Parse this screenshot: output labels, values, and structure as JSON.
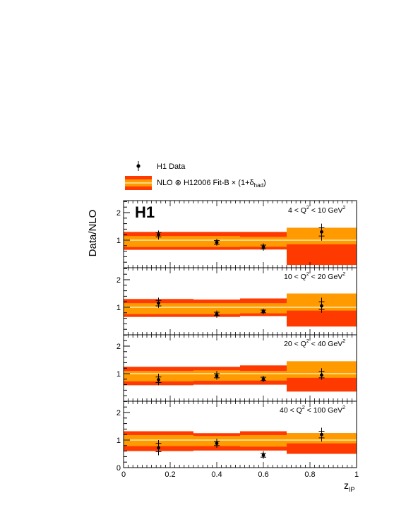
{
  "legend": {
    "data_label": "H1 Data",
    "theory_label": "NLO ⊗ H12006 Fit-B × (1+δhad)"
  },
  "experiment_logo": "H1",
  "y_axis_label": "Data/NLO",
  "x_axis_label": "zIP",
  "colors": {
    "outer_band": "#ff3a00",
    "inner_band": "#ff9a00",
    "central_line": "#ffe9a8",
    "data": "#000000"
  },
  "chart_data": {
    "type": "scatter",
    "x_range": [
      0,
      1
    ],
    "x_ticks": [
      "0",
      "0.2",
      "0.4",
      "0.6",
      "0.8",
      "1"
    ],
    "panels": [
      {
        "label": "4 < Q2 < 10 GeV2",
        "y_ticks_labeled": [
          "1",
          "2"
        ],
        "ylim": [
          0,
          2.4
        ],
        "bins": [
          {
            "x_low": 0.0,
            "x_high": 0.3,
            "outer": [
              0.65,
              1.3
            ],
            "inner": [
              0.75,
              1.15
            ]
          },
          {
            "x_low": 0.3,
            "x_high": 0.5,
            "outer": [
              0.65,
              1.3
            ],
            "inner": [
              0.75,
              1.15
            ]
          },
          {
            "x_low": 0.5,
            "x_high": 0.7,
            "outer": [
              0.66,
              1.3
            ],
            "inner": [
              0.76,
              1.12
            ]
          },
          {
            "x_low": 0.7,
            "x_high": 1.0,
            "outer": [
              0.1,
              1.45
            ],
            "inner": [
              0.85,
              1.45
            ]
          }
        ],
        "points": [
          {
            "x": 0.15,
            "y": 1.2,
            "stat": [
              1.12,
              1.28
            ],
            "tot": [
              1.02,
              1.35
            ]
          },
          {
            "x": 0.4,
            "y": 0.92,
            "stat": [
              0.85,
              0.99
            ],
            "tot": [
              0.8,
              1.05
            ]
          },
          {
            "x": 0.6,
            "y": 0.75,
            "stat": [
              0.68,
              0.82
            ],
            "tot": [
              0.62,
              0.88
            ]
          },
          {
            "x": 0.85,
            "y": 1.3,
            "stat": [
              1.15,
              1.45
            ],
            "tot": [
              0.98,
              1.6
            ]
          }
        ]
      },
      {
        "label": "10 < Q2 < 20 GeV2",
        "y_ticks_labeled": [
          "1",
          "2"
        ],
        "ylim": [
          0,
          2.4
        ],
        "bins": [
          {
            "x_low": 0.0,
            "x_high": 0.3,
            "outer": [
              0.65,
              1.3
            ],
            "inner": [
              0.75,
              1.15
            ]
          },
          {
            "x_low": 0.3,
            "x_high": 0.5,
            "outer": [
              0.65,
              1.28
            ],
            "inner": [
              0.75,
              1.15
            ]
          },
          {
            "x_low": 0.5,
            "x_high": 0.7,
            "outer": [
              0.68,
              1.32
            ],
            "inner": [
              0.78,
              1.15
            ]
          },
          {
            "x_low": 0.7,
            "x_high": 1.0,
            "outer": [
              0.3,
              1.5
            ],
            "inner": [
              0.88,
              1.5
            ]
          }
        ],
        "points": [
          {
            "x": 0.15,
            "y": 1.15,
            "stat": [
              1.05,
              1.25
            ],
            "tot": [
              0.98,
              1.35
            ]
          },
          {
            "x": 0.4,
            "y": 0.75,
            "stat": [
              0.7,
              0.82
            ],
            "tot": [
              0.62,
              0.88
            ]
          },
          {
            "x": 0.6,
            "y": 0.85,
            "stat": [
              0.8,
              0.9
            ],
            "tot": [
              0.75,
              0.95
            ]
          },
          {
            "x": 0.85,
            "y": 1.05,
            "stat": [
              0.92,
              1.2
            ],
            "tot": [
              0.8,
              1.35
            ]
          }
        ]
      },
      {
        "label": "20 < Q2 < 40 GeV2",
        "y_ticks_labeled": [
          "1",
          "2"
        ],
        "ylim": [
          0,
          2.4
        ],
        "bins": [
          {
            "x_low": 0.0,
            "x_high": 0.3,
            "outer": [
              0.58,
              1.25
            ],
            "inner": [
              0.72,
              1.1
            ]
          },
          {
            "x_low": 0.3,
            "x_high": 0.5,
            "outer": [
              0.6,
              1.25
            ],
            "inner": [
              0.74,
              1.12
            ]
          },
          {
            "x_low": 0.5,
            "x_high": 0.7,
            "outer": [
              0.6,
              1.3
            ],
            "inner": [
              0.75,
              1.1
            ]
          },
          {
            "x_low": 0.7,
            "x_high": 1.0,
            "outer": [
              0.35,
              1.45
            ],
            "inner": [
              0.85,
              1.45
            ]
          }
        ],
        "points": [
          {
            "x": 0.15,
            "y": 0.78,
            "stat": [
              0.68,
              0.88
            ],
            "tot": [
              0.58,
              1.0
            ]
          },
          {
            "x": 0.4,
            "y": 0.92,
            "stat": [
              0.85,
              1.0
            ],
            "tot": [
              0.78,
              1.1
            ]
          },
          {
            "x": 0.6,
            "y": 0.8,
            "stat": [
              0.75,
              0.87
            ],
            "tot": [
              0.7,
              0.92
            ]
          },
          {
            "x": 0.85,
            "y": 0.95,
            "stat": [
              0.85,
              1.08
            ],
            "tot": [
              0.78,
              1.2
            ]
          }
        ]
      },
      {
        "label": "40 < Q2 < 100 GeV2",
        "y_ticks_labeled": [
          "0",
          "1",
          "2"
        ],
        "ylim": [
          0,
          2.4
        ],
        "bins": [
          {
            "x_low": 0.0,
            "x_high": 0.3,
            "outer": [
              0.6,
              1.32
            ],
            "inner": [
              0.78,
              1.18
            ]
          },
          {
            "x_low": 0.3,
            "x_high": 0.5,
            "outer": [
              0.62,
              1.25
            ],
            "inner": [
              0.78,
              1.15
            ]
          },
          {
            "x_low": 0.5,
            "x_high": 0.7,
            "outer": [
              0.62,
              1.32
            ],
            "inner": [
              0.76,
              1.18
            ]
          },
          {
            "x_low": 0.7,
            "x_high": 1.0,
            "outer": [
              0.5,
              1.25
            ],
            "inner": [
              0.88,
              1.25
            ]
          }
        ],
        "points": [
          {
            "x": 0.15,
            "y": 0.72,
            "stat": [
              0.58,
              0.88
            ],
            "tot": [
              0.45,
              1.0
            ]
          },
          {
            "x": 0.4,
            "y": 0.88,
            "stat": [
              0.8,
              0.96
            ],
            "tot": [
              0.72,
              1.05
            ]
          },
          {
            "x": 0.6,
            "y": 0.45,
            "stat": [
              0.38,
              0.52
            ],
            "tot": [
              0.32,
              0.6
            ]
          },
          {
            "x": 0.85,
            "y": 1.2,
            "stat": [
              1.08,
              1.32
            ],
            "tot": [
              0.95,
              1.45
            ]
          }
        ]
      }
    ]
  }
}
